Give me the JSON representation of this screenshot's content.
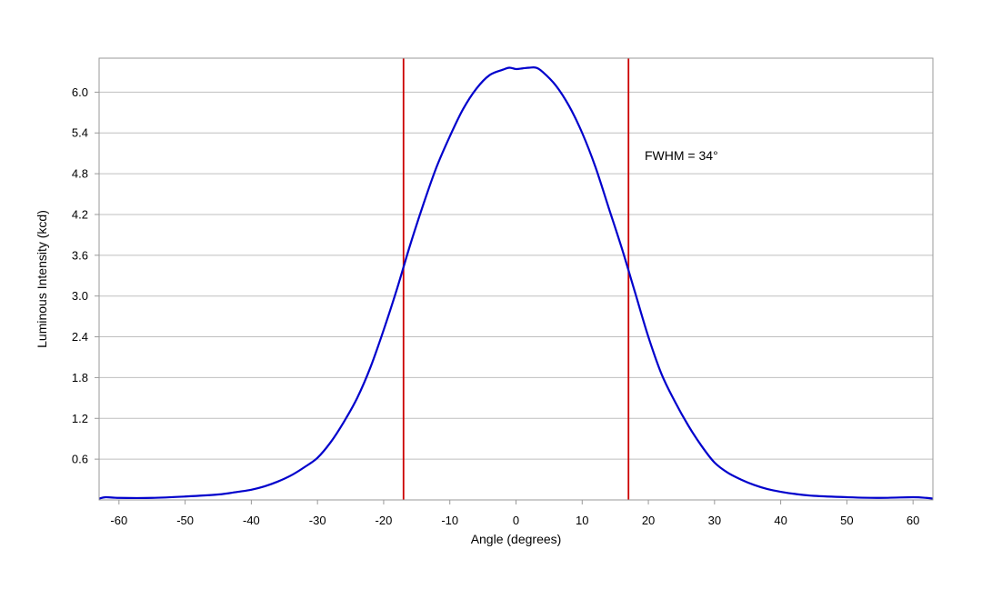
{
  "chart_data": {
    "type": "line",
    "title": "",
    "xlabel": "Angle (degrees)",
    "ylabel": "Luminous Intensity (kcd)",
    "xlim": [
      -63,
      63
    ],
    "ylim": [
      0,
      6.5
    ],
    "x_ticks": [
      "-60",
      "-50",
      "-40",
      "-30",
      "-20",
      "-10",
      "0",
      "10",
      "20",
      "30",
      "40",
      "50",
      "60"
    ],
    "y_ticks": [
      "0.6",
      "1.2",
      "1.8",
      "2.4",
      "3.0",
      "3.6",
      "4.2",
      "4.8",
      "5.4",
      "6.0"
    ],
    "grid": "horizontal",
    "legend": "none",
    "series": [
      {
        "color": "#0000cc",
        "x": [
          -63,
          -62,
          -60,
          -55,
          -50,
          -45,
          -42,
          -40,
          -38,
          -36,
          -34,
          -32,
          -30,
          -28,
          -26,
          -24,
          -22,
          -20,
          -18,
          -16,
          -14,
          -12,
          -10,
          -8,
          -6,
          -4,
          -2,
          -1,
          0,
          1,
          2,
          3,
          4,
          6,
          8,
          10,
          12,
          14,
          16,
          18,
          20,
          22,
          24,
          26,
          28,
          30,
          32,
          34,
          36,
          38,
          40,
          42,
          45,
          50,
          55,
          60,
          62,
          63
        ],
        "y": [
          0.02,
          0.04,
          0.03,
          0.03,
          0.05,
          0.08,
          0.12,
          0.15,
          0.2,
          0.27,
          0.36,
          0.48,
          0.62,
          0.85,
          1.15,
          1.5,
          1.95,
          2.5,
          3.1,
          3.75,
          4.35,
          4.9,
          5.35,
          5.75,
          6.05,
          6.25,
          6.33,
          6.36,
          6.34,
          6.35,
          6.36,
          6.36,
          6.3,
          6.1,
          5.8,
          5.4,
          4.9,
          4.3,
          3.7,
          3.05,
          2.4,
          1.85,
          1.45,
          1.1,
          0.8,
          0.55,
          0.4,
          0.3,
          0.22,
          0.16,
          0.12,
          0.09,
          0.06,
          0.04,
          0.03,
          0.04,
          0.03,
          0.02
        ]
      }
    ],
    "reference_lines": [
      {
        "axis": "x",
        "value": -17,
        "color": "#cc0000"
      },
      {
        "axis": "x",
        "value": 17,
        "color": "#cc0000"
      }
    ],
    "annotation": "FWHM = 34°",
    "colors": {
      "plot_border": "#999999",
      "grid": "#bfbfbf",
      "curve": "#0000cc",
      "marker_lines": "#cc0000"
    }
  }
}
